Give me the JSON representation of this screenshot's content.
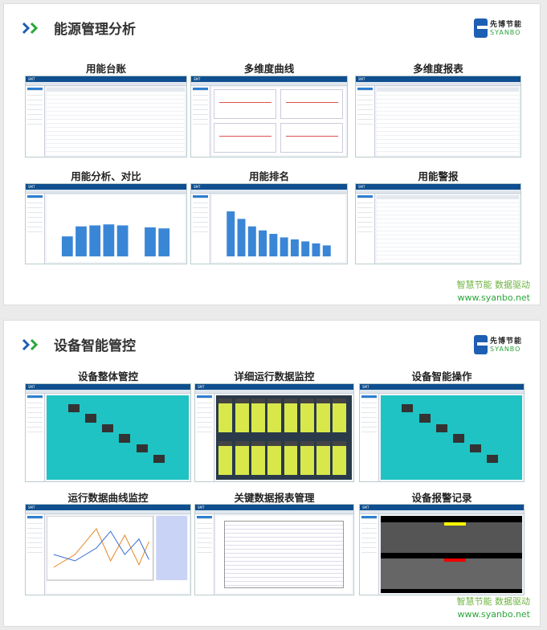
{
  "sections": [
    {
      "title": "能源管理分析",
      "logo": {
        "cn": "先博节能",
        "en": "SYANBO"
      },
      "items": [
        {
          "label": "用能台账",
          "kind": "table"
        },
        {
          "label": "多维度曲线",
          "kind": "lines"
        },
        {
          "label": "多维度报表",
          "kind": "table"
        },
        {
          "label": "用能分析、对比",
          "kind": "bars"
        },
        {
          "label": "用能排名",
          "kind": "rank"
        },
        {
          "label": "用能警报",
          "kind": "table"
        }
      ],
      "footer": {
        "slogan": "智慧节能 数据驱动",
        "url": "www.syanbo.net"
      }
    },
    {
      "title": "设备智能管控",
      "logo": {
        "cn": "先博节能",
        "en": "SYANBO"
      },
      "items": [
        {
          "label": "设备整体管控",
          "kind": "scada"
        },
        {
          "label": "详细运行数据监控",
          "kind": "monitor"
        },
        {
          "label": "设备智能操作",
          "kind": "scada2"
        },
        {
          "label": "运行数据曲线监控",
          "kind": "curve"
        },
        {
          "label": "关键数据报表管理",
          "kind": "report"
        },
        {
          "label": "设备报警记录",
          "kind": "alarm"
        }
      ],
      "footer": {
        "slogan": "智慧节能 数据驱动",
        "url": "www.syanbo.net"
      }
    }
  ],
  "screen_header": "SMT",
  "colors": {
    "brand_blue": "#1d5fb3",
    "brand_green": "#2aa63a",
    "app_header": "#0f4f8f",
    "scada_teal": "#1fc3c3"
  }
}
